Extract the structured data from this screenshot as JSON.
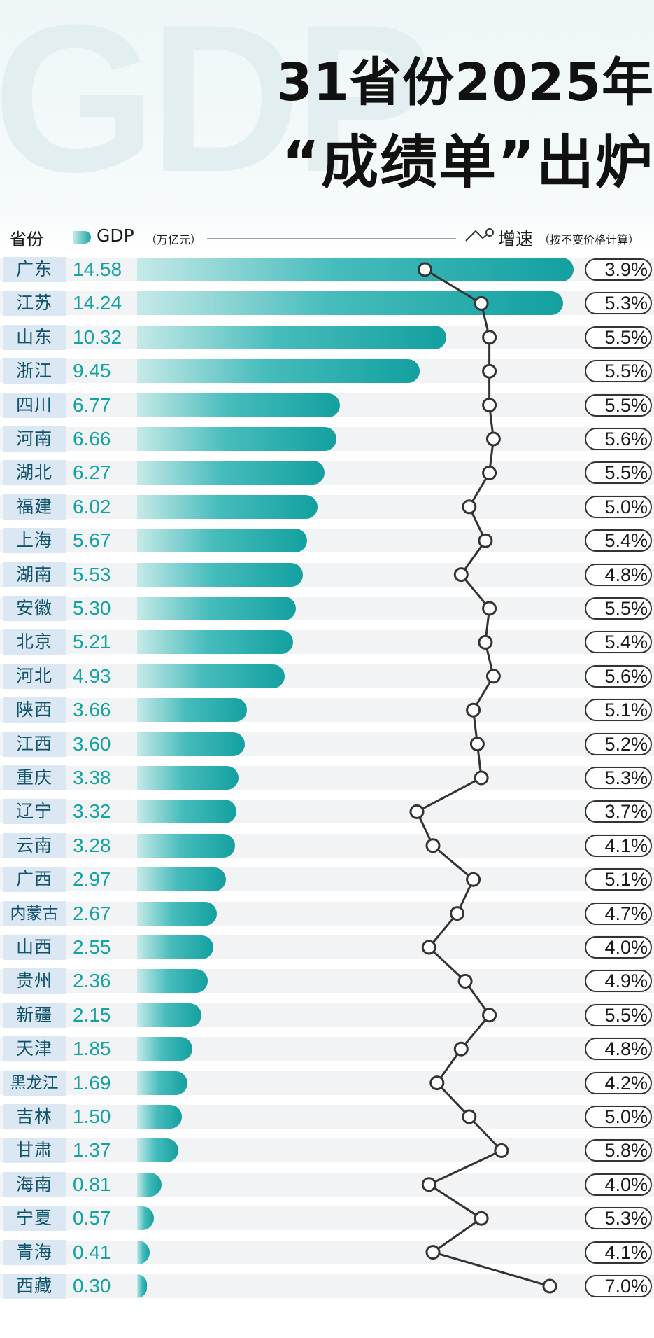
{
  "watermark": "GDP",
  "title": {
    "line1": "31省份2025年",
    "line2": "“成绩单”出炉"
  },
  "legend": {
    "province_label": "省份",
    "gdp_label": "GDP",
    "gdp_unit": "（万亿元）",
    "growth_label": "增速",
    "growth_note": "（按不变价格计算）"
  },
  "colors": {
    "bar_start": "#c9ecea",
    "bar_end": "#13a0a0",
    "value_text": "#17a2a2",
    "province_box": "#dbe8f3",
    "province_text": "#10536a",
    "growth_line": "#333333"
  },
  "chart_data": {
    "type": "bar",
    "orientation": "horizontal",
    "categories": [
      "广东",
      "江苏",
      "山东",
      "浙江",
      "四川",
      "河南",
      "湖北",
      "福建",
      "上海",
      "湖南",
      "安徽",
      "北京",
      "河北",
      "陕西",
      "江西",
      "重庆",
      "辽宁",
      "云南",
      "广西",
      "内蒙古",
      "山西",
      "贵州",
      "新疆",
      "天津",
      "黑龙江",
      "吉林",
      "甘肃",
      "海南",
      "宁夏",
      "青海",
      "西藏"
    ],
    "series": [
      {
        "name": "GDP",
        "unit": "万亿元",
        "values": [
          14.58,
          14.24,
          10.32,
          9.45,
          6.77,
          6.66,
          6.27,
          6.02,
          5.67,
          5.53,
          5.3,
          5.21,
          4.93,
          3.66,
          3.6,
          3.38,
          3.32,
          3.28,
          2.97,
          2.67,
          2.55,
          2.36,
          2.15,
          1.85,
          1.69,
          1.5,
          1.37,
          0.81,
          0.57,
          0.41,
          0.3
        ],
        "labels": [
          "14.58",
          "14.24",
          "10.32",
          "9.45",
          "6.77",
          "6.66",
          "6.27",
          "6.02",
          "5.67",
          "5.53",
          "5.30",
          "5.21",
          "4.93",
          "3.66",
          "3.60",
          "3.38",
          "3.32",
          "3.28",
          "2.97",
          "2.67",
          "2.55",
          "2.36",
          "2.15",
          "1.85",
          "1.69",
          "1.50",
          "1.37",
          "0.81",
          "0.57",
          "0.41",
          "0.30"
        ]
      },
      {
        "name": "增速",
        "unit": "%",
        "type": "line",
        "values": [
          3.9,
          5.3,
          5.5,
          5.5,
          5.5,
          5.6,
          5.5,
          5.0,
          5.4,
          4.8,
          5.5,
          5.4,
          5.6,
          5.1,
          5.2,
          5.3,
          3.7,
          4.1,
          5.1,
          4.7,
          4.0,
          4.9,
          5.5,
          4.8,
          4.2,
          5.0,
          5.8,
          4.0,
          5.3,
          4.1,
          7.0
        ],
        "labels": [
          "3.9%",
          "5.3%",
          "5.5%",
          "5.5%",
          "5.5%",
          "5.6%",
          "5.5%",
          "5.0%",
          "5.4%",
          "4.8%",
          "5.5%",
          "5.4%",
          "5.6%",
          "5.1%",
          "5.2%",
          "5.3%",
          "3.7%",
          "4.1%",
          "5.1%",
          "4.7%",
          "4.0%",
          "4.9%",
          "5.5%",
          "4.8%",
          "4.2%",
          "5.0%",
          "5.8%",
          "4.0%",
          "5.3%",
          "4.1%",
          "7.0%"
        ]
      }
    ],
    "gdp_max": 14.58,
    "grid": false,
    "legend_position": "top"
  }
}
